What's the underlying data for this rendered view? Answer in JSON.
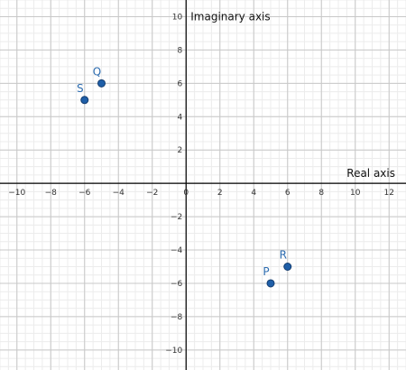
{
  "chart_data": {
    "type": "scatter",
    "xlabel": "Real axis",
    "ylabel": "Imaginary axis",
    "xlim": [
      -11,
      13
    ],
    "ylim": [
      -11.2,
      11
    ],
    "grid": true,
    "x_ticks": [
      -10,
      -8,
      -6,
      -4,
      -2,
      0,
      2,
      4,
      6,
      8,
      10,
      12
    ],
    "y_ticks": [
      -10,
      -8,
      -6,
      -4,
      -2,
      2,
      4,
      6,
      8,
      10
    ],
    "minor_step": 0.5,
    "points": [
      {
        "label": "Q",
        "x": -5,
        "y": 6
      },
      {
        "label": "S",
        "x": -6,
        "y": 5
      },
      {
        "label": "R",
        "x": 6,
        "y": -5
      },
      {
        "label": "P",
        "x": 5,
        "y": -6
      }
    ],
    "colors": {
      "point_fill": "#1f5fa8",
      "point_stroke": "#143d70",
      "point_label": "#2e6db0",
      "axis": "#000000",
      "major_grid": "#c8c8c8",
      "minor_grid": "#ececec"
    }
  }
}
